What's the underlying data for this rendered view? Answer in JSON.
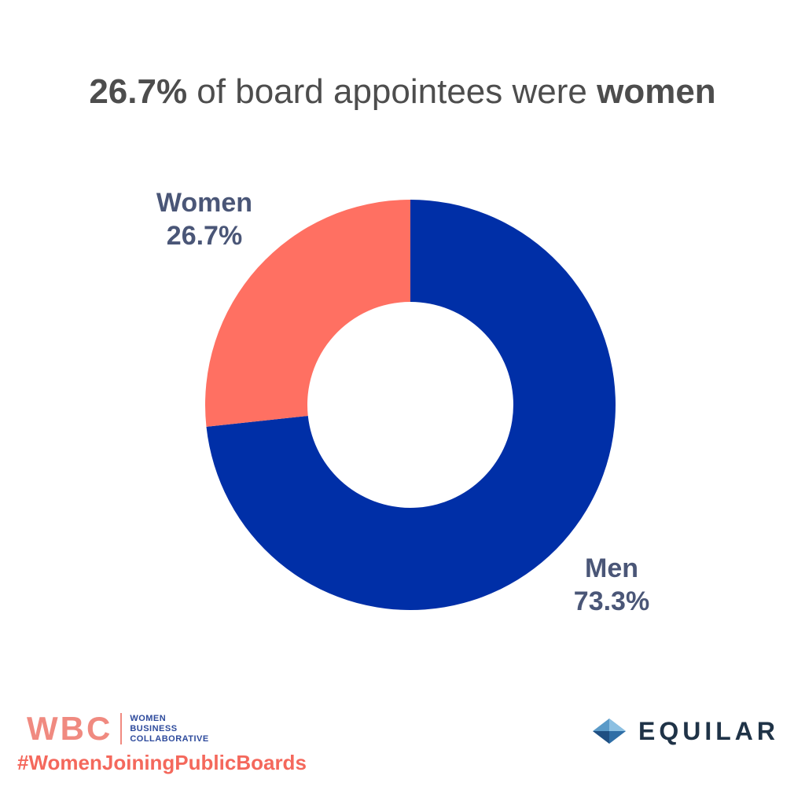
{
  "title": {
    "bold_prefix": "26.7%",
    "middle": " of board appointees were ",
    "bold_suffix": "women"
  },
  "chart_data": {
    "type": "pie",
    "variant": "donut",
    "title": "26.7% of board appointees were women",
    "slices": [
      {
        "label": "Women",
        "value": 26.7,
        "value_label": "26.7%",
        "color": "#ff7062"
      },
      {
        "label": "Men",
        "value": 73.3,
        "value_label": "73.3%",
        "color": "#002fa7"
      }
    ]
  },
  "footer": {
    "wbc": {
      "letters": "WBC",
      "line1": "WOMEN",
      "line2": "BUSINESS",
      "line3": "COLLABORATIVE"
    },
    "hashtag": "#WomenJoiningPublicBoards",
    "equilar": {
      "name": "EQUILAR",
      "icon": "diamond-icon"
    }
  },
  "colors": {
    "title_text": "#4d4d4d",
    "label_text": "#4a5677",
    "wbc_coral": "#f08a80",
    "wbc_blue": "#2d4a9c",
    "hashtag": "#f4685c",
    "equilar_text": "#1f3347"
  }
}
